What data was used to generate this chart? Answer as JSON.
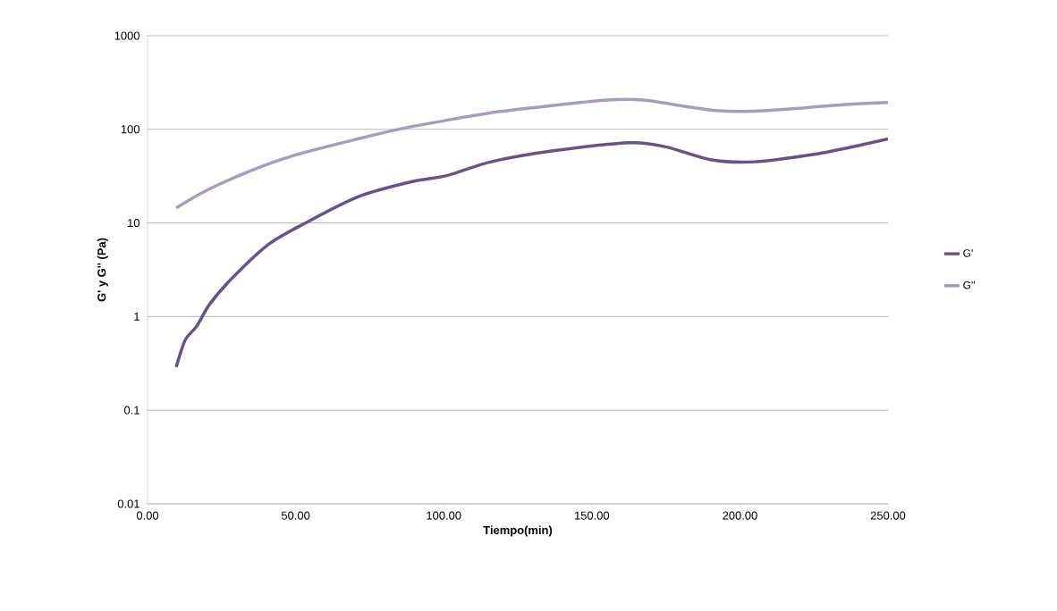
{
  "chart_data": {
    "type": "line",
    "xlabel": "Tiempo(min)",
    "ylabel": "G' y G'' (Pa)",
    "log": "y",
    "grid": "y",
    "legend": "right",
    "xlim": [
      0,
      250
    ],
    "ylim": [
      0.01,
      1000
    ],
    "xticks": [
      {
        "value": 0,
        "label": "0.00"
      },
      {
        "value": 50,
        "label": "50.00"
      },
      {
        "value": 100,
        "label": "100.00"
      },
      {
        "value": 150,
        "label": "150.00"
      },
      {
        "value": 200,
        "label": "200.00"
      },
      {
        "value": 250,
        "label": "250.00"
      }
    ],
    "yticks": [
      0.01,
      0.1,
      1,
      10,
      100,
      1000
    ],
    "series": [
      {
        "name": "G'",
        "color": "#67538a",
        "x": [
          9.7,
          12.7,
          16.6,
          21,
          28.7,
          40.8,
          52.8,
          71,
          89,
          101,
          116,
          137,
          163,
          175,
          190,
          205,
          225,
          240,
          250
        ],
        "values": [
          0.29,
          0.56,
          0.79,
          1.36,
          2.6,
          5.9,
          9.8,
          19,
          27.5,
          32,
          45,
          59,
          72,
          65,
          47.5,
          45,
          54,
          67,
          79
        ]
      },
      {
        "name": "G''",
        "color": "#a99bbd",
        "x": [
          9.7,
          19.6,
          34.7,
          49.8,
          71,
          86,
          101,
          119,
          137,
          155,
          167.6,
          179.5,
          191.7,
          204,
          222,
          237,
          250
        ],
        "values": [
          14.5,
          22,
          36,
          53,
          79,
          102,
          125,
          155,
          180,
          206,
          206,
          180,
          159,
          156,
          170,
          185,
          193
        ]
      }
    ]
  }
}
